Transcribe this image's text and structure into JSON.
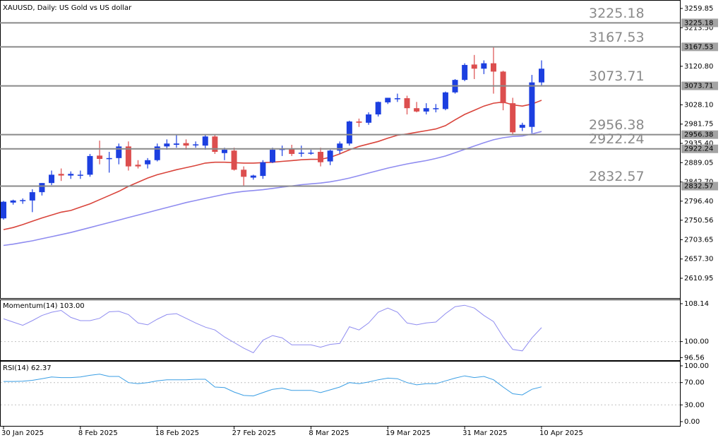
{
  "chart_data": [
    {
      "type": "candlestick",
      "title": "XAUUSD, Daily:  US Gold vs US dollar",
      "categories": [
        "30 Jan 2025",
        null,
        null,
        null,
        null,
        null,
        null,
        null,
        "8 Feb 2025",
        null,
        null,
        null,
        null,
        null,
        null,
        null,
        "18 Feb 2025",
        null,
        null,
        null,
        null,
        null,
        null,
        null,
        "27 Feb 2025",
        null,
        null,
        null,
        null,
        null,
        null,
        null,
        "8 Mar 2025",
        null,
        null,
        null,
        null,
        null,
        null,
        null,
        "19 Mar 2025",
        null,
        null,
        null,
        null,
        null,
        null,
        null,
        "31 Mar 2025",
        null,
        null,
        null,
        null,
        null,
        null,
        null,
        "10 Apr 2025"
      ],
      "open": [
        2755,
        2793,
        2797,
        2798,
        2818,
        2840,
        2862,
        2858,
        2860,
        2860,
        2906,
        2898,
        2900,
        2928,
        2884,
        2885,
        2895,
        2928,
        2932,
        2936,
        2932,
        2930,
        2952,
        2912,
        2918,
        2872,
        2853,
        2857,
        2890,
        2920,
        2922,
        2912,
        2912,
        2915,
        2892,
        2918,
        2935,
        2988,
        2985,
        3005,
        3034,
        3042,
        3044,
        3020,
        3012,
        3018,
        3018,
        3058,
        3088,
        3125,
        3115,
        3128,
        3108,
        3032,
        2973,
        2975,
        3082
      ],
      "high": [
        2797,
        2800,
        2803,
        2825,
        2840,
        2870,
        2875,
        2868,
        2870,
        2910,
        2942,
        2915,
        2935,
        2940,
        2895,
        2900,
        2935,
        2945,
        2955,
        2945,
        2940,
        2956,
        2956,
        2925,
        2925,
        2880,
        2860,
        2895,
        2925,
        2930,
        2932,
        2930,
        2920,
        2925,
        2920,
        2940,
        2990,
        2995,
        3010,
        3036,
        3045,
        3055,
        3050,
        3035,
        3032,
        3030,
        3060,
        3090,
        3128,
        3148,
        3135,
        3167,
        3110,
        3045,
        2985,
        3100,
        3135
      ],
      "low": [
        2752,
        2788,
        2790,
        2770,
        2810,
        2835,
        2845,
        2850,
        2850,
        2855,
        2885,
        2865,
        2885,
        2870,
        2875,
        2875,
        2892,
        2920,
        2925,
        2920,
        2925,
        2920,
        2910,
        2895,
        2870,
        2832,
        2848,
        2850,
        2888,
        2905,
        2905,
        2903,
        2908,
        2880,
        2883,
        2910,
        2930,
        2975,
        2980,
        3000,
        3030,
        3035,
        3005,
        3010,
        3005,
        3010,
        3015,
        3055,
        3085,
        3090,
        3102,
        3055,
        3015,
        2957,
        2965,
        2960,
        3075
      ],
      "close": [
        2795,
        2798,
        2799,
        2818,
        2840,
        2860,
        2858,
        2862,
        2860,
        2905,
        2898,
        2900,
        2928,
        2880,
        2880,
        2895,
        2928,
        2935,
        2935,
        2930,
        2933,
        2952,
        2915,
        2920,
        2872,
        2855,
        2858,
        2890,
        2920,
        2922,
        2910,
        2913,
        2913,
        2890,
        2918,
        2935,
        2988,
        2985,
        3005,
        3035,
        3045,
        3044,
        3020,
        3012,
        3020,
        3020,
        3058,
        3088,
        3124,
        3115,
        3128,
        3108,
        3032,
        2962,
        2980,
        3082,
        3115
      ],
      "up_color": "#1c3fe0",
      "down_color": "#dc4e4e",
      "overlays": [
        {
          "color": "#d9443b",
          "values": [
            2728,
            2733,
            2740,
            2748,
            2756,
            2763,
            2770,
            2774,
            2782,
            2790,
            2800,
            2810,
            2820,
            2832,
            2842,
            2852,
            2860,
            2866,
            2872,
            2877,
            2882,
            2888,
            2890,
            2890,
            2889,
            2888,
            2888,
            2889,
            2890,
            2892,
            2894,
            2896,
            2897,
            2897,
            2902,
            2910,
            2920,
            2928,
            2934,
            2940,
            2948,
            2955,
            2958,
            2962,
            2966,
            2970,
            2978,
            2992,
            3005,
            3015,
            3025,
            3032,
            3035,
            3028,
            3025,
            3030,
            3039
          ]
        },
        {
          "color": "#8f8cf0",
          "values": [
            2690,
            2693,
            2697,
            2701,
            2706,
            2711,
            2716,
            2721,
            2727,
            2733,
            2739,
            2745,
            2751,
            2757,
            2763,
            2769,
            2775,
            2781,
            2787,
            2793,
            2798,
            2803,
            2808,
            2813,
            2817,
            2820,
            2822,
            2824,
            2827,
            2830,
            2833,
            2836,
            2838,
            2840,
            2843,
            2847,
            2852,
            2858,
            2864,
            2870,
            2876,
            2881,
            2886,
            2890,
            2894,
            2899,
            2905,
            2913,
            2921,
            2929,
            2937,
            2944,
            2949,
            2952,
            2953,
            2958,
            2964
          ]
        }
      ],
      "levels": [
        3225.18,
        3167.53,
        3073.71,
        2956.38,
        2922.24,
        2832.57
      ],
      "level_color": "#8a8a8a",
      "ylim": [
        2563.4,
        3276.8
      ],
      "yticks": [
        3259.85,
        {
          "value": 3213.5,
          "label": "3213.50"
        },
        {
          "value": 3120.8,
          "label": "3120.80"
        },
        {
          "value": 3028.1,
          "label": "3028.10"
        },
        2981.75,
        {
          "value": 2935.4,
          "label": "2935.40"
        },
        2889.05,
        {
          "value": 2842.7,
          "label": "2842.70"
        },
        {
          "value": 2796.4,
          "label": "2796.40"
        },
        2750.56,
        2703.65,
        {
          "value": 2657.3,
          "label": "2657.30"
        },
        2610.95
      ]
    },
    {
      "type": "line",
      "title": "Momentum(14) 103.00",
      "color": "#8f8cf0",
      "values": [
        104.9,
        104.2,
        103.5,
        104.5,
        105.6,
        106.3,
        106.7,
        105.2,
        104.5,
        104.5,
        105.0,
        106.4,
        106.5,
        105.8,
        104.0,
        103.6,
        104.8,
        105.8,
        106.0,
        105.0,
        104.0,
        103.1,
        102.5,
        101.0,
        99.8,
        98.6,
        97.6,
        100.3,
        101.3,
        100.8,
        99.3,
        99.3,
        99.3,
        98.8,
        99.4,
        99.6,
        103.2,
        102.5,
        104.0,
        106.3,
        107.2,
        106.3,
        104.0,
        103.6,
        104.0,
        104.2,
        106.0,
        107.5,
        107.8,
        107.2,
        105.6,
        104.3,
        101.0,
        98.3,
        98.0,
        100.8,
        103.0
      ],
      "reference_lines": [
        100
      ],
      "ylim": [
        96.0,
        108.9
      ],
      "yticks": [
        108.14,
        {
          "value": 100,
          "label": "100.00"
        },
        96.56
      ]
    },
    {
      "type": "line",
      "title": "RSI(14) 62.37",
      "color": "#3a9ee4",
      "values": [
        72,
        72,
        72.5,
        74,
        77,
        80,
        79,
        79,
        80,
        83,
        85,
        81,
        81,
        70,
        68,
        70,
        73,
        75,
        75,
        75,
        76,
        76,
        62,
        61,
        53,
        47,
        46,
        52,
        58,
        60,
        56,
        56,
        56,
        52,
        57,
        62,
        70,
        68,
        71,
        75,
        78,
        77,
        70,
        66,
        68,
        68,
        73,
        78,
        82,
        79,
        81,
        75,
        62,
        50,
        48,
        58,
        62.37
      ],
      "reference_lines": [
        70,
        30
      ],
      "ylim": [
        -8.9,
        107.6
      ],
      "yticks": [
        {
          "value": 100,
          "label": "100.00"
        },
        {
          "value": 70,
          "label": "70.00"
        },
        {
          "value": 30,
          "label": "30.00"
        },
        {
          "value": 0,
          "label": "0.00"
        }
      ]
    }
  ]
}
